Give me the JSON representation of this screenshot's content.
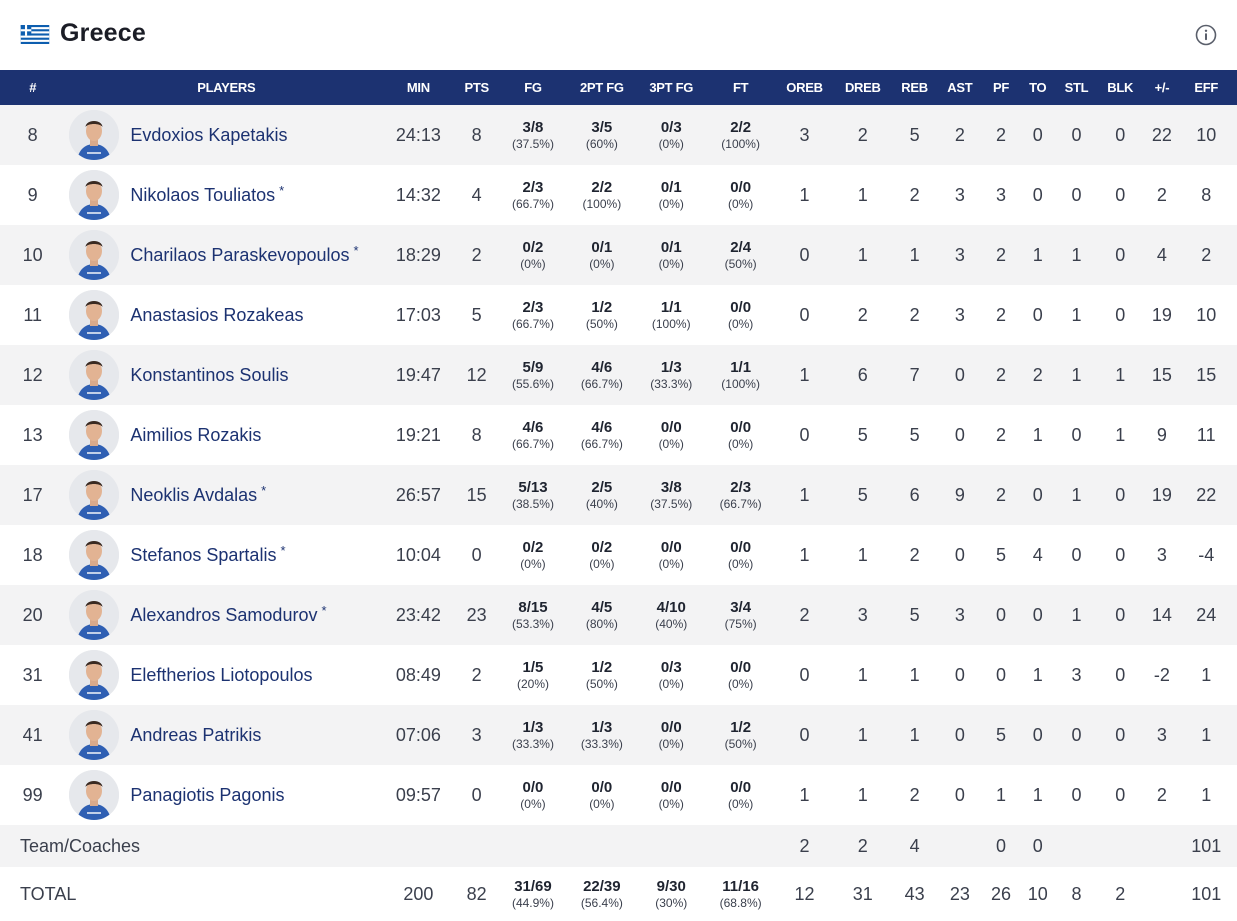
{
  "team": {
    "name": "Greece"
  },
  "icons": {
    "flag": "greece-flag-icon",
    "info": "info-icon"
  },
  "colors": {
    "header_bg": "#1c3271",
    "name_link": "#1c3271",
    "row_alt": "#f3f3f4"
  },
  "columns": [
    "#",
    "PLAYERS",
    "MIN",
    "PTS",
    "FG",
    "2PT FG",
    "3PT FG",
    "FT",
    "OREB",
    "DREB",
    "REB",
    "AST",
    "PF",
    "TO",
    "STL",
    "BLK",
    "+/-",
    "EFF"
  ],
  "players": [
    {
      "num": "8",
      "name": "Evdoxios Kapetakis",
      "star": "",
      "min": "24:13",
      "pts": "8",
      "fg": "3/8",
      "fg_pct": "(37.5%)",
      "p2": "3/5",
      "p2_pct": "(60%)",
      "p3": "0/3",
      "p3_pct": "(0%)",
      "ft": "2/2",
      "ft_pct": "(100%)",
      "oreb": "3",
      "dreb": "2",
      "reb": "5",
      "ast": "2",
      "pf": "2",
      "to": "0",
      "stl": "0",
      "blk": "0",
      "pm": "22",
      "eff": "10"
    },
    {
      "num": "9",
      "name": "Nikolaos Touliatos",
      "star": "*",
      "min": "14:32",
      "pts": "4",
      "fg": "2/3",
      "fg_pct": "(66.7%)",
      "p2": "2/2",
      "p2_pct": "(100%)",
      "p3": "0/1",
      "p3_pct": "(0%)",
      "ft": "0/0",
      "ft_pct": "(0%)",
      "oreb": "1",
      "dreb": "1",
      "reb": "2",
      "ast": "3",
      "pf": "3",
      "to": "0",
      "stl": "0",
      "blk": "0",
      "pm": "2",
      "eff": "8"
    },
    {
      "num": "10",
      "name": "Charilaos Paraskevopoulos",
      "star": "*",
      "min": "18:29",
      "pts": "2",
      "fg": "0/2",
      "fg_pct": "(0%)",
      "p2": "0/1",
      "p2_pct": "(0%)",
      "p3": "0/1",
      "p3_pct": "(0%)",
      "ft": "2/4",
      "ft_pct": "(50%)",
      "oreb": "0",
      "dreb": "1",
      "reb": "1",
      "ast": "3",
      "pf": "2",
      "to": "1",
      "stl": "1",
      "blk": "0",
      "pm": "4",
      "eff": "2"
    },
    {
      "num": "11",
      "name": "Anastasios Rozakeas",
      "star": "",
      "min": "17:03",
      "pts": "5",
      "fg": "2/3",
      "fg_pct": "(66.7%)",
      "p2": "1/2",
      "p2_pct": "(50%)",
      "p3": "1/1",
      "p3_pct": "(100%)",
      "ft": "0/0",
      "ft_pct": "(0%)",
      "oreb": "0",
      "dreb": "2",
      "reb": "2",
      "ast": "3",
      "pf": "2",
      "to": "0",
      "stl": "1",
      "blk": "0",
      "pm": "19",
      "eff": "10"
    },
    {
      "num": "12",
      "name": "Konstantinos Soulis",
      "star": "",
      "min": "19:47",
      "pts": "12",
      "fg": "5/9",
      "fg_pct": "(55.6%)",
      "p2": "4/6",
      "p2_pct": "(66.7%)",
      "p3": "1/3",
      "p3_pct": "(33.3%)",
      "ft": "1/1",
      "ft_pct": "(100%)",
      "oreb": "1",
      "dreb": "6",
      "reb": "7",
      "ast": "0",
      "pf": "2",
      "to": "2",
      "stl": "1",
      "blk": "1",
      "pm": "15",
      "eff": "15"
    },
    {
      "num": "13",
      "name": "Aimilios Rozakis",
      "star": "",
      "min": "19:21",
      "pts": "8",
      "fg": "4/6",
      "fg_pct": "(66.7%)",
      "p2": "4/6",
      "p2_pct": "(66.7%)",
      "p3": "0/0",
      "p3_pct": "(0%)",
      "ft": "0/0",
      "ft_pct": "(0%)",
      "oreb": "0",
      "dreb": "5",
      "reb": "5",
      "ast": "0",
      "pf": "2",
      "to": "1",
      "stl": "0",
      "blk": "1",
      "pm": "9",
      "eff": "11"
    },
    {
      "num": "17",
      "name": "Neoklis Avdalas",
      "star": "*",
      "min": "26:57",
      "pts": "15",
      "fg": "5/13",
      "fg_pct": "(38.5%)",
      "p2": "2/5",
      "p2_pct": "(40%)",
      "p3": "3/8",
      "p3_pct": "(37.5%)",
      "ft": "2/3",
      "ft_pct": "(66.7%)",
      "oreb": "1",
      "dreb": "5",
      "reb": "6",
      "ast": "9",
      "pf": "2",
      "to": "0",
      "stl": "1",
      "blk": "0",
      "pm": "19",
      "eff": "22"
    },
    {
      "num": "18",
      "name": "Stefanos Spartalis",
      "star": "*",
      "min": "10:04",
      "pts": "0",
      "fg": "0/2",
      "fg_pct": "(0%)",
      "p2": "0/2",
      "p2_pct": "(0%)",
      "p3": "0/0",
      "p3_pct": "(0%)",
      "ft": "0/0",
      "ft_pct": "(0%)",
      "oreb": "1",
      "dreb": "1",
      "reb": "2",
      "ast": "0",
      "pf": "5",
      "to": "4",
      "stl": "0",
      "blk": "0",
      "pm": "3",
      "eff": "-4"
    },
    {
      "num": "20",
      "name": "Alexandros Samodurov",
      "star": "*",
      "min": "23:42",
      "pts": "23",
      "fg": "8/15",
      "fg_pct": "(53.3%)",
      "p2": "4/5",
      "p2_pct": "(80%)",
      "p3": "4/10",
      "p3_pct": "(40%)",
      "ft": "3/4",
      "ft_pct": "(75%)",
      "oreb": "2",
      "dreb": "3",
      "reb": "5",
      "ast": "3",
      "pf": "0",
      "to": "0",
      "stl": "1",
      "blk": "0",
      "pm": "14",
      "eff": "24"
    },
    {
      "num": "31",
      "name": "Eleftherios Liotopoulos",
      "star": "",
      "min": "08:49",
      "pts": "2",
      "fg": "1/5",
      "fg_pct": "(20%)",
      "p2": "1/2",
      "p2_pct": "(50%)",
      "p3": "0/3",
      "p3_pct": "(0%)",
      "ft": "0/0",
      "ft_pct": "(0%)",
      "oreb": "0",
      "dreb": "1",
      "reb": "1",
      "ast": "0",
      "pf": "0",
      "to": "1",
      "stl": "3",
      "blk": "0",
      "pm": "-2",
      "eff": "1"
    },
    {
      "num": "41",
      "name": "Andreas Patrikis",
      "star": "",
      "min": "07:06",
      "pts": "3",
      "fg": "1/3",
      "fg_pct": "(33.3%)",
      "p2": "1/3",
      "p2_pct": "(33.3%)",
      "p3": "0/0",
      "p3_pct": "(0%)",
      "ft": "1/2",
      "ft_pct": "(50%)",
      "oreb": "0",
      "dreb": "1",
      "reb": "1",
      "ast": "0",
      "pf": "5",
      "to": "0",
      "stl": "0",
      "blk": "0",
      "pm": "3",
      "eff": "1"
    },
    {
      "num": "99",
      "name": "Panagiotis Pagonis",
      "star": "",
      "min": "09:57",
      "pts": "0",
      "fg": "0/0",
      "fg_pct": "(0%)",
      "p2": "0/0",
      "p2_pct": "(0%)",
      "p3": "0/0",
      "p3_pct": "(0%)",
      "ft": "0/0",
      "ft_pct": "(0%)",
      "oreb": "1",
      "dreb": "1",
      "reb": "2",
      "ast": "0",
      "pf": "1",
      "to": "1",
      "stl": "0",
      "blk": "0",
      "pm": "2",
      "eff": "1"
    }
  ],
  "team_row": {
    "label": "Team/Coaches",
    "oreb": "2",
    "dreb": "2",
    "reb": "4",
    "pf": "0",
    "to": "0",
    "eff": "101"
  },
  "total_row": {
    "label": "TOTAL",
    "min": "200",
    "pts": "82",
    "fg": "31/69",
    "fg_pct": "(44.9%)",
    "p2": "22/39",
    "p2_pct": "(56.4%)",
    "p3": "9/30",
    "p3_pct": "(30%)",
    "ft": "11/16",
    "ft_pct": "(68.8%)",
    "oreb": "12",
    "dreb": "31",
    "reb": "43",
    "ast": "23",
    "pf": "26",
    "to": "10",
    "stl": "8",
    "blk": "2",
    "eff": "101"
  }
}
